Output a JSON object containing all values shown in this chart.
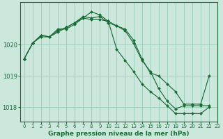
{
  "background_color": "#cce8dc",
  "grid_color": "#99ccbb",
  "line_color": "#1a6b35",
  "marker_color": "#1a6b35",
  "xlabel": "Graphe pression niveau de la mer (hPa)",
  "xlim": [
    -0.5,
    23
  ],
  "ylim": [
    1017.55,
    1021.35
  ],
  "yticks": [
    1018,
    1019,
    1020
  ],
  "xticks": [
    0,
    1,
    2,
    3,
    4,
    5,
    6,
    7,
    8,
    9,
    10,
    11,
    12,
    13,
    14,
    15,
    16,
    17,
    18,
    19,
    20,
    21,
    22,
    23
  ],
  "series": [
    {
      "x": [
        0,
        1,
        2,
        3,
        4,
        5,
        6,
        7,
        8,
        9,
        10,
        11,
        12,
        13,
        14,
        15,
        16,
        17,
        18,
        19,
        20,
        21,
        22
      ],
      "y": [
        1019.55,
        1020.05,
        1020.3,
        1020.25,
        1020.5,
        1020.5,
        1020.65,
        1020.85,
        1021.05,
        1020.95,
        1020.75,
        1020.6,
        1020.5,
        1020.15,
        1019.55,
        1019.1,
        1019.0,
        1018.75,
        1018.5,
        1018.1,
        1018.1,
        1018.1,
        1019.0
      ]
    },
    {
      "x": [
        0,
        1,
        2,
        3,
        4,
        5,
        6,
        7,
        8,
        9,
        10,
        11,
        12,
        13,
        14,
        15,
        16,
        17,
        18,
        19,
        20,
        21,
        22
      ],
      "y": [
        1019.55,
        1020.05,
        1020.3,
        1020.25,
        1020.4,
        1020.55,
        1020.7,
        1020.9,
        1020.85,
        1020.9,
        1020.7,
        1020.6,
        1020.45,
        1020.05,
        1019.5,
        1019.15,
        1018.6,
        1018.2,
        1017.95,
        1018.05,
        1018.05,
        1018.05,
        1018.05
      ]
    },
    {
      "x": [
        0,
        1,
        2,
        3,
        4,
        5,
        6,
        7,
        8,
        9,
        10,
        11,
        12,
        13,
        14,
        15,
        16,
        17,
        18,
        19,
        20,
        21,
        22
      ],
      "y": [
        1019.55,
        1020.05,
        1020.25,
        1020.25,
        1020.45,
        1020.55,
        1020.7,
        1020.85,
        1020.8,
        1020.8,
        1020.75,
        1019.85,
        1019.5,
        1019.15,
        1018.75,
        1018.5,
        1018.3,
        1018.05,
        1017.8,
        1017.8,
        1017.8,
        1017.8,
        1018.0
      ]
    }
  ]
}
